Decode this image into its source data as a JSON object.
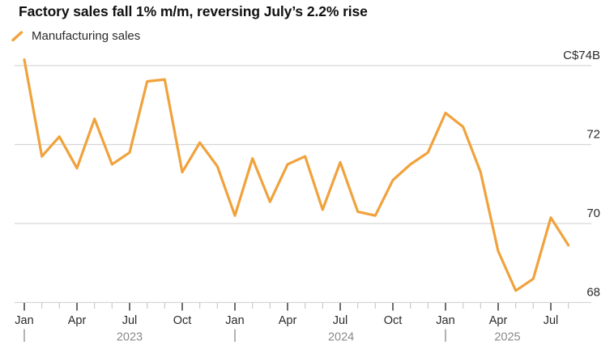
{
  "header": {
    "title": "Factory sales fall 1% m/m, reversing July’s 2.2% rise"
  },
  "legend": {
    "label": "Manufacturing sales"
  },
  "colors": {
    "line": "#F0A23C",
    "grid": "#D6D6D6",
    "axis_text": "#2B2B2B",
    "muted_text": "#8A8A8A",
    "major_tick": "#3D3D3D",
    "minor_tick": "#CBCBCB",
    "title_text": "#111111"
  },
  "chart_data": {
    "type": "line",
    "title": "Factory sales fall 1% m/m, reversing July’s 2.2% rise",
    "unit": "C$B",
    "ylabel": "C$74B",
    "ylim": [
      68,
      74.35
    ],
    "grid": "horizontal",
    "legend_position": "top-left",
    "x_months": [
      "Jan 2023",
      "Feb 2023",
      "Mar 2023",
      "Apr 2023",
      "May 2023",
      "Jun 2023",
      "Jul 2023",
      "Aug 2023",
      "Sep 2023",
      "Oct 2023",
      "Nov 2023",
      "Dec 2023",
      "Jan 2024",
      "Feb 2024",
      "Mar 2024",
      "Apr 2024",
      "May 2024",
      "Jun 2024",
      "Jul 2024",
      "Aug 2024",
      "Sep 2024",
      "Oct 2024",
      "Nov 2024",
      "Dec 2024",
      "Jan 2025",
      "Feb 2025",
      "Mar 2025",
      "Apr 2025",
      "May 2025",
      "Jun 2025",
      "Jul 2025",
      "Aug 2025"
    ],
    "series": [
      {
        "name": "Manufacturing sales",
        "values": [
          74.15,
          71.7,
          72.2,
          71.4,
          72.65,
          71.5,
          71.8,
          73.6,
          73.65,
          71.3,
          72.05,
          71.45,
          70.2,
          71.65,
          70.55,
          71.5,
          71.7,
          70.35,
          71.55,
          70.3,
          70.2,
          71.1,
          71.5,
          71.8,
          72.8,
          72.45,
          71.3,
          69.3,
          68.3,
          68.6,
          70.15,
          69.45
        ]
      }
    ],
    "y_ticks": [
      {
        "value": 74,
        "label": "C$74B"
      },
      {
        "value": 72,
        "label": "72"
      },
      {
        "value": 70,
        "label": "70"
      },
      {
        "value": 68,
        "label": "68"
      }
    ],
    "x_tick_labels": [
      {
        "i": 0,
        "label": "Jan"
      },
      {
        "i": 3,
        "label": "Apr"
      },
      {
        "i": 6,
        "label": "Jul"
      },
      {
        "i": 9,
        "label": "Oct"
      },
      {
        "i": 12,
        "label": "Jan"
      },
      {
        "i": 15,
        "label": "Apr"
      },
      {
        "i": 18,
        "label": "Jul"
      },
      {
        "i": 21,
        "label": "Oct"
      },
      {
        "i": 24,
        "label": "Jan"
      },
      {
        "i": 27,
        "label": "Apr"
      },
      {
        "i": 30,
        "label": "Jul"
      }
    ],
    "year_markers": [
      {
        "label": "2023",
        "separator_i": 0,
        "center_i": 6
      },
      {
        "label": "2024",
        "separator_i": 12,
        "center_i": 18.05
      },
      {
        "label": "2025",
        "separator_i": 24,
        "center_i": 27.53
      }
    ]
  }
}
